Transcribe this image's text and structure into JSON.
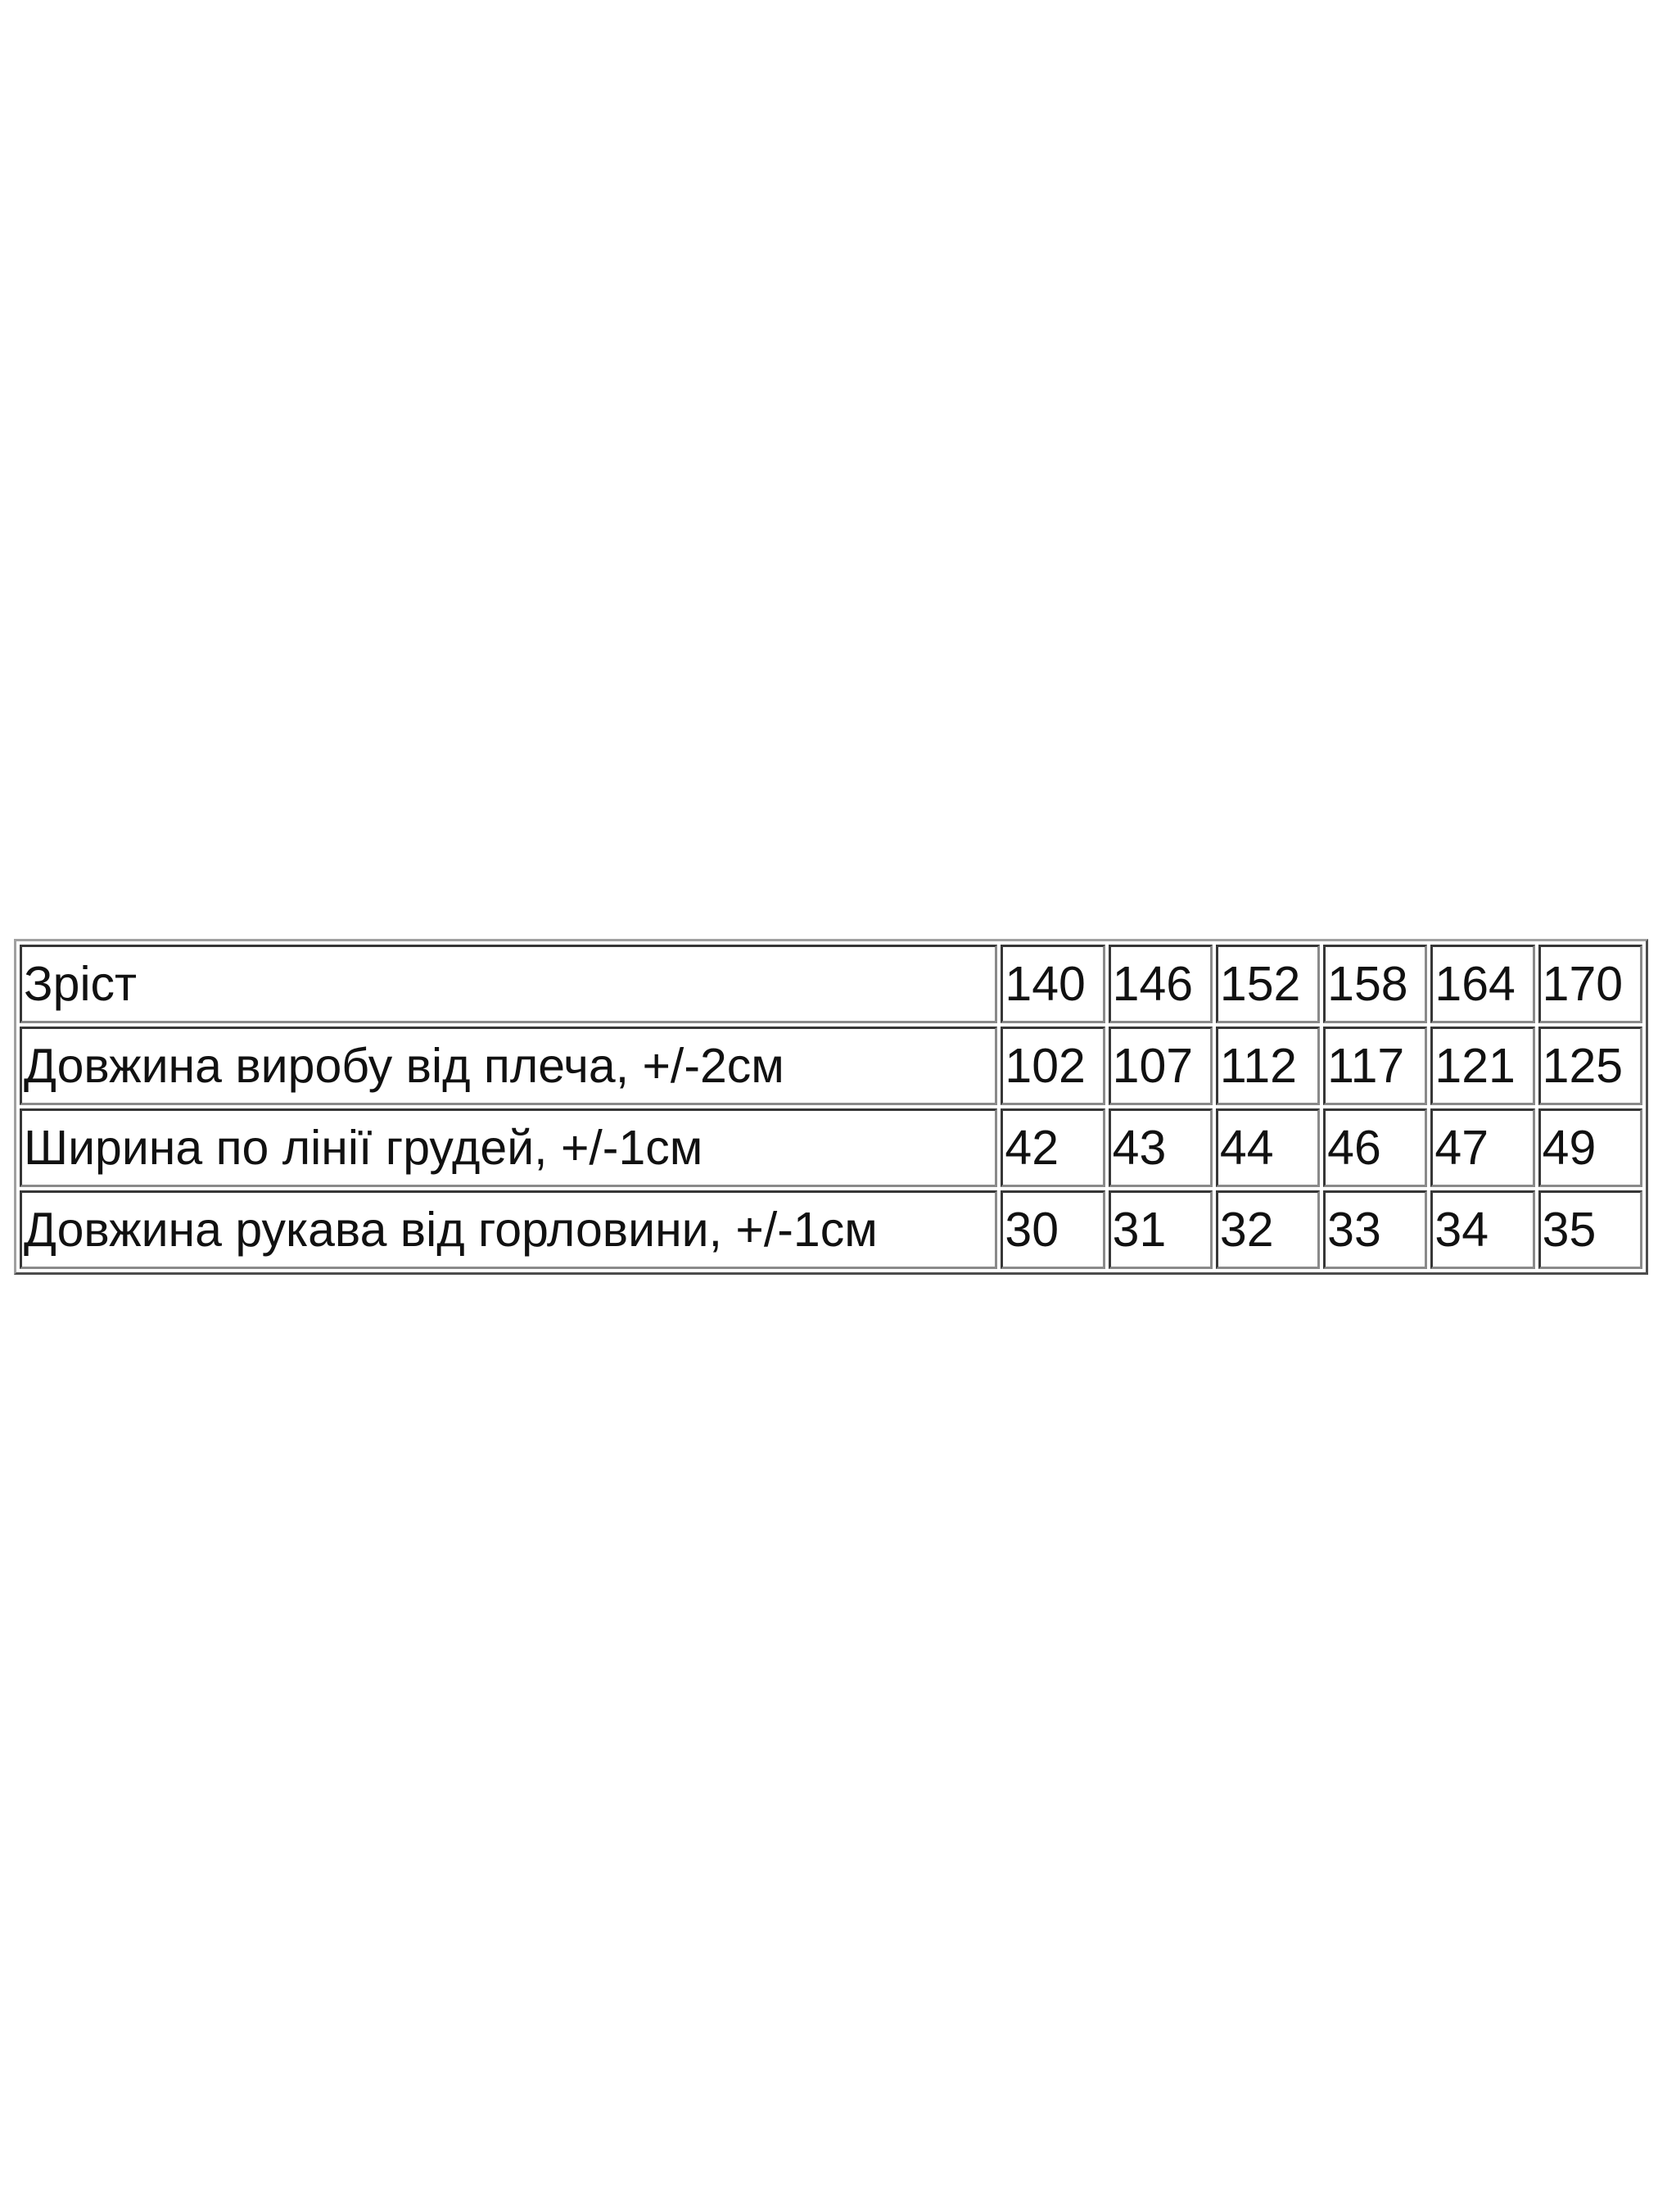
{
  "table": {
    "rows": [
      {
        "label": "Зріст",
        "values": [
          "140",
          "146",
          "152",
          "158",
          "164",
          "170"
        ]
      },
      {
        "label": "Довжина виробу від плеча, +/-2см",
        "values": [
          "102",
          "107",
          "112",
          "117",
          "121",
          "125"
        ]
      },
      {
        "label": "Ширина по лінії грудей, +/-1см",
        "values": [
          "42",
          "43",
          "44",
          "46",
          "47",
          "49"
        ]
      },
      {
        "label": "Довжина рукава від горловини, +/-1см",
        "values": [
          "30",
          "31",
          "32",
          "33",
          "34",
          "35"
        ]
      }
    ]
  }
}
